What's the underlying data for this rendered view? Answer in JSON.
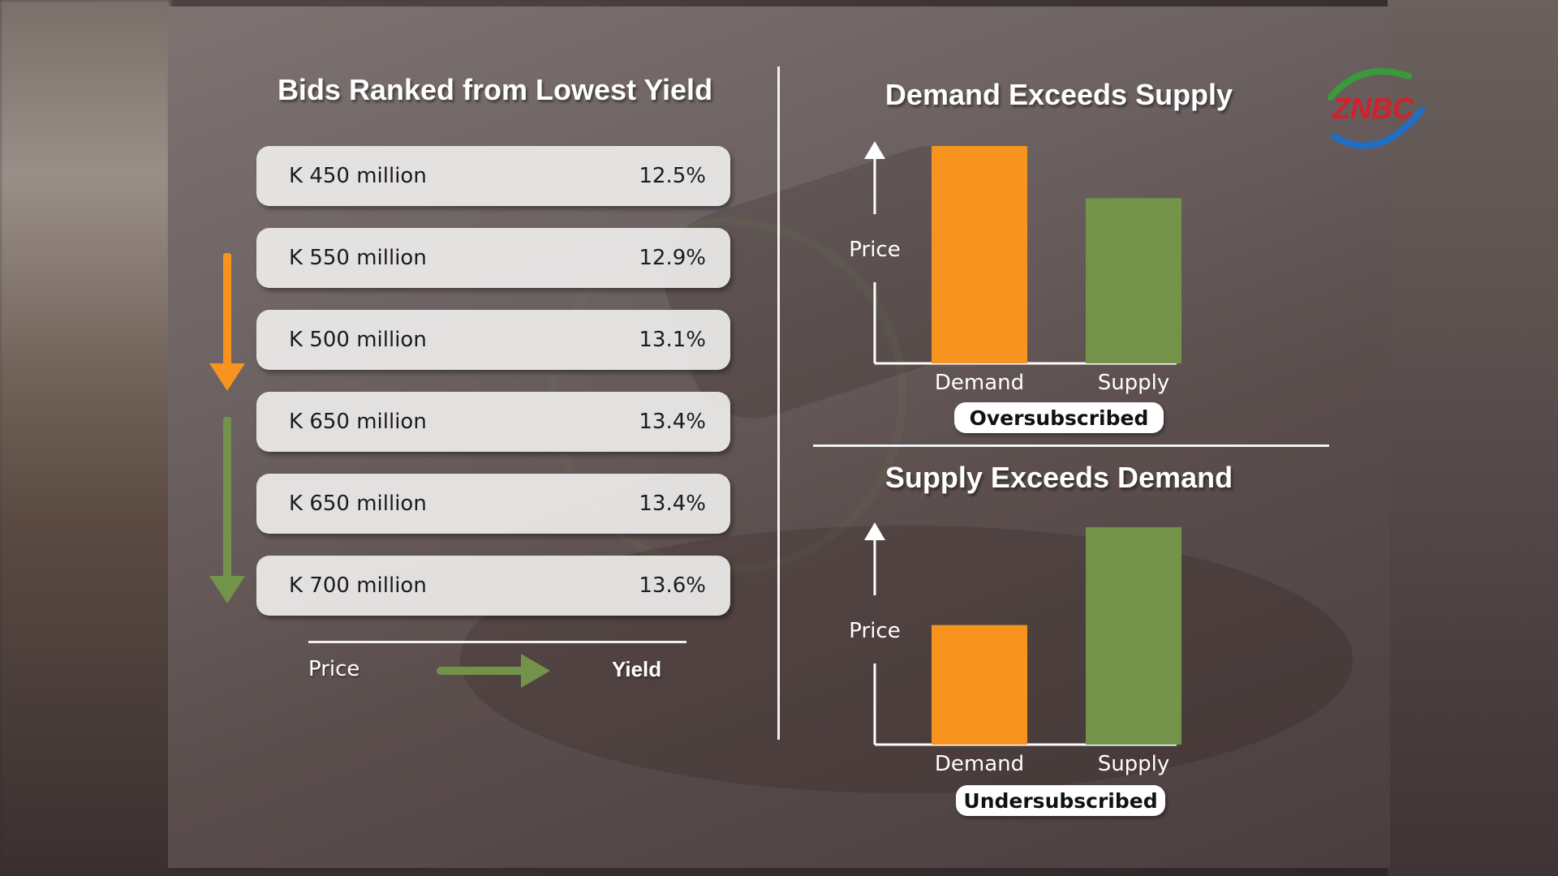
{
  "left": {
    "title": "Bids Ranked from Lowest Yield",
    "bids": [
      {
        "amount": "K 450 million",
        "yield": "12.5%"
      },
      {
        "amount": "K 550 million",
        "yield": "12.9%"
      },
      {
        "amount": "K 500 million",
        "yield": "13.1%"
      },
      {
        "amount": "K 650 million",
        "yield": "13.4%"
      },
      {
        "amount": "K 650 million",
        "yield": "13.4%"
      },
      {
        "amount": "K 700 million",
        "yield": "13.6%"
      }
    ],
    "axis_from": "Price",
    "axis_to": "Yield"
  },
  "logo_text": "ZNBC",
  "colors": {
    "orange": "#f7931e",
    "green": "#73934a",
    "white": "#ffffff"
  },
  "chart_data": [
    {
      "type": "bar",
      "title": "Demand Exceeds Supply",
      "ylabel": "Price",
      "categories": [
        "Demand",
        "Supply"
      ],
      "values": [
        1.0,
        0.76
      ],
      "colors": [
        "#f7931e",
        "#73934a"
      ],
      "caption": "Oversubscribed"
    },
    {
      "type": "bar",
      "title": "Supply Exceeds Demand",
      "ylabel": "Price",
      "categories": [
        "Demand",
        "Supply"
      ],
      "values": [
        0.55,
        1.0
      ],
      "colors": [
        "#f7931e",
        "#73934a"
      ],
      "caption": "Undersubscribed"
    }
  ]
}
